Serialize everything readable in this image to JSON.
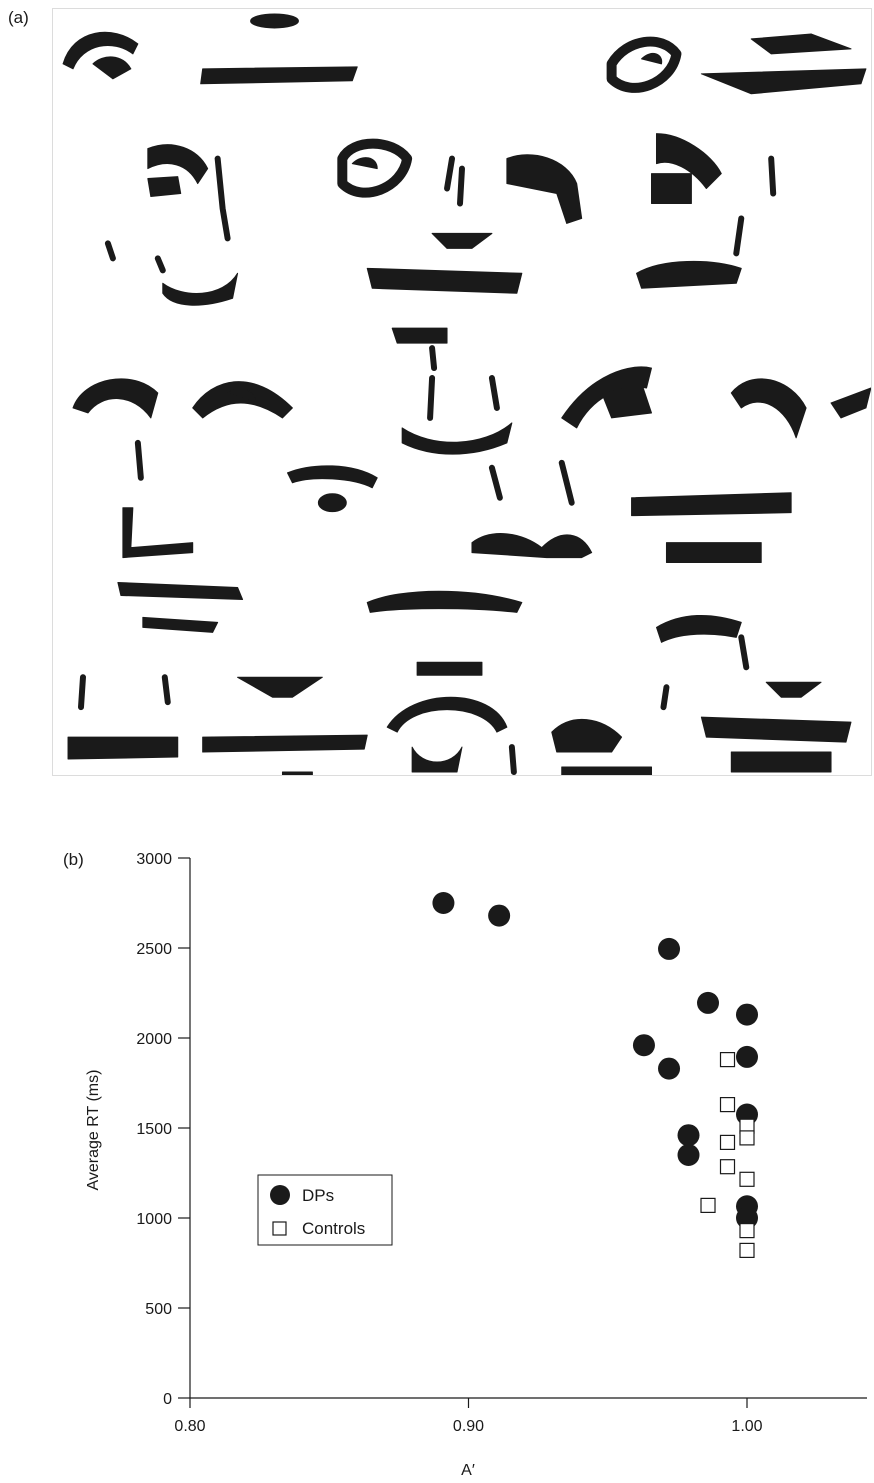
{
  "panels": {
    "a_label": "(a)",
    "b_label": "(b)"
  },
  "colors": {
    "ink": "#1a1a1a",
    "background": "#ffffff"
  },
  "chart_data": {
    "type": "scatter",
    "title": "",
    "xlabel": "A′",
    "ylabel": "Average RT (ms)",
    "xlim": [
      0.8,
      1.0
    ],
    "ylim": [
      0,
      3000
    ],
    "xticks": [
      "0.80",
      "0.90",
      "1.00"
    ],
    "yticks": [
      "0",
      "500",
      "1000",
      "1500",
      "2000",
      "2500",
      "3000"
    ],
    "grid": false,
    "legend_placement": "center-left",
    "series": [
      {
        "name": "DPs",
        "marker": "filled-circle",
        "points": [
          [
            0.891,
            2750
          ],
          [
            0.911,
            2680
          ],
          [
            0.972,
            2495
          ],
          [
            0.986,
            2195
          ],
          [
            1.0,
            2130
          ],
          [
            0.963,
            1960
          ],
          [
            0.972,
            1830
          ],
          [
            1.0,
            1895
          ],
          [
            1.0,
            1575
          ],
          [
            0.979,
            1460
          ],
          [
            0.979,
            1350
          ],
          [
            1.0,
            1065
          ],
          [
            1.0,
            1000
          ]
        ]
      },
      {
        "name": "Controls",
        "marker": "open-square",
        "points": [
          [
            0.993,
            1880
          ],
          [
            0.993,
            1630
          ],
          [
            1.0,
            1510
          ],
          [
            1.0,
            1445
          ],
          [
            0.993,
            1420
          ],
          [
            0.993,
            1285
          ],
          [
            1.0,
            1215
          ],
          [
            0.986,
            1070
          ],
          [
            1.0,
            930
          ],
          [
            1.0,
            820
          ]
        ]
      }
    ]
  }
}
